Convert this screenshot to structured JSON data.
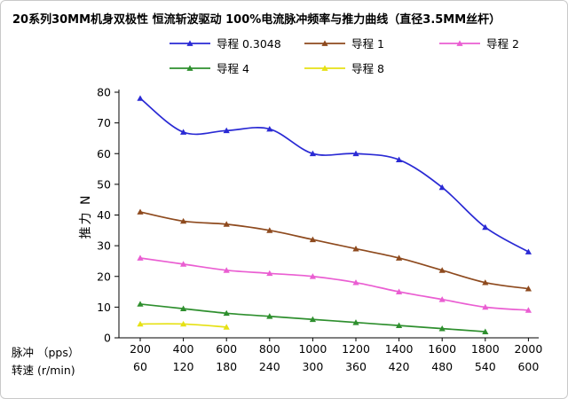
{
  "panel": {
    "border_color": "#c9c9c9",
    "axis_color": "#000000"
  },
  "chart_data": {
    "type": "line",
    "title": "20系列30MM机身双极性 恒流斩波驱动 100%电流脉冲频率与推力曲线（直径3.5MM丝杆）",
    "ylabel": "推力 N",
    "ylim": [
      0,
      80
    ],
    "ytick_step": 10,
    "grid": false,
    "legend_position": "top",
    "marker": "triangle",
    "x_axis_rows": [
      {
        "label": "脉冲 （pps）",
        "values": [
          200,
          400,
          600,
          800,
          1000,
          1200,
          1400,
          1600,
          1800,
          2000
        ]
      },
      {
        "label": "转速 (r/min)",
        "values": [
          60,
          120,
          180,
          240,
          300,
          360,
          420,
          480,
          540,
          600
        ]
      }
    ],
    "series": [
      {
        "name": "导程 0.3048",
        "color": "#2a2ad4",
        "values": [
          78,
          67,
          67.5,
          68,
          60,
          60,
          58,
          49,
          36,
          28
        ]
      },
      {
        "name": "导程 1",
        "color": "#8e4a1e",
        "values": [
          41,
          38,
          37,
          35,
          32,
          29,
          26,
          22,
          18,
          16
        ]
      },
      {
        "name": "导程 2",
        "color": "#ea5ed2",
        "values": [
          26,
          24,
          22,
          21,
          20,
          18,
          15,
          12.5,
          10,
          9
        ]
      },
      {
        "name": "导程 4",
        "color": "#2e8f2e",
        "values": [
          11,
          9.5,
          8,
          7,
          6,
          5,
          4,
          3,
          2
        ]
      },
      {
        "name": "导程 8",
        "color": "#e6e114",
        "values": [
          4.5,
          4.5,
          3.5
        ]
      }
    ]
  }
}
